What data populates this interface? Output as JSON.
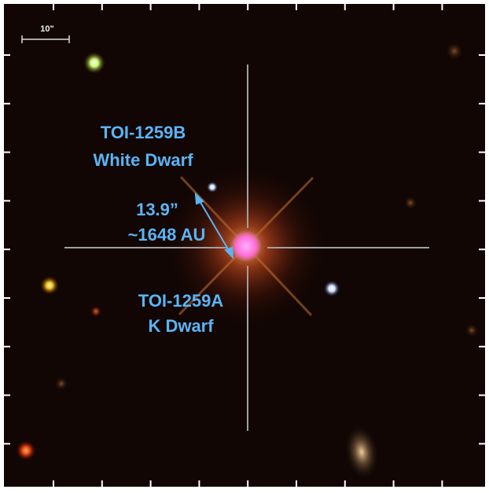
{
  "scale_bar": {
    "label": "10\""
  },
  "annotations": [
    {
      "lines": [
        "TOI-1259B",
        "White Dwarf"
      ]
    },
    {
      "lines": [
        "13.9”",
        "~1648 AU"
      ]
    },
    {
      "lines": [
        "TOI-1259A",
        "K Dwarf"
      ]
    }
  ]
}
